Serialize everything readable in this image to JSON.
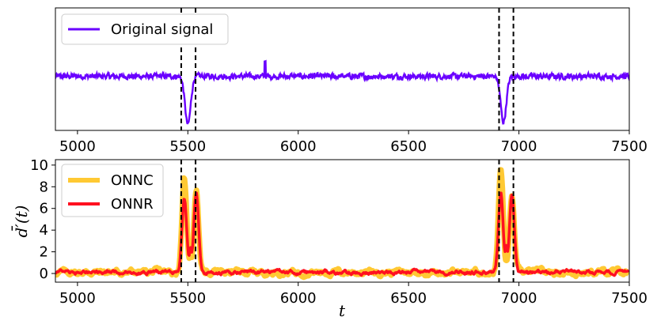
{
  "chart_data": [
    {
      "type": "line",
      "panel": "top",
      "xlim": [
        4900,
        7500
      ],
      "ylim": [
        -1.9,
        2.4
      ],
      "yticks_visible": false,
      "x_ticks": [
        5000,
        5500,
        6000,
        6500,
        7000,
        7500
      ],
      "x_tick_labels": [
        "5000",
        "5500",
        "6000",
        "6500",
        "7000",
        "7500"
      ],
      "xlabel": "",
      "ylabel": "",
      "legend_position": "top-left",
      "series": [
        {
          "name": "Original signal",
          "color": "#6a00ff",
          "baseline": 0.0,
          "noise_amplitude": 0.13,
          "dips": [
            {
              "center": 5500,
              "depth": -1.7
            },
            {
              "center": 6930,
              "depth": -1.6
            }
          ]
        }
      ],
      "vlines": [
        5470,
        5535,
        6910,
        6975
      ],
      "vline_style": "dashed",
      "vline_color": "#000000"
    },
    {
      "type": "line",
      "panel": "bottom",
      "xlim": [
        4900,
        7500
      ],
      "ylim": [
        -0.8,
        10.5
      ],
      "y_ticks": [
        0,
        2,
        4,
        6,
        8,
        10
      ],
      "y_tick_labels": [
        "0",
        "2",
        "4",
        "6",
        "8",
        "10"
      ],
      "x_ticks": [
        5000,
        5500,
        6000,
        6500,
        7000,
        7500
      ],
      "x_tick_labels": [
        "5000",
        "5500",
        "6000",
        "6500",
        "7000",
        "7500"
      ],
      "xlabel": "t",
      "ylabel": "d̄′(t)",
      "legend_position": "top-left",
      "series": [
        {
          "name": "ONNC",
          "color": "#ffc933",
          "peaks": [
            {
              "x": 5484,
              "y": 8.5
            },
            {
              "x": 5538,
              "y": 7.6
            },
            {
              "x": 6918,
              "y": 9.5
            },
            {
              "x": 6968,
              "y": 7.0
            }
          ],
          "troughs": [
            {
              "x": 5512,
              "y": 1.8
            },
            {
              "x": 6943,
              "y": 1.2
            }
          ]
        },
        {
          "name": "ONNR",
          "color": "#ff1020",
          "peaks": [
            {
              "x": 5484,
              "y": 6.7
            },
            {
              "x": 5538,
              "y": 7.3
            },
            {
              "x": 6918,
              "y": 7.4
            },
            {
              "x": 6968,
              "y": 7.2
            }
          ],
          "troughs": [
            {
              "x": 5512,
              "y": 2.4
            },
            {
              "x": 6943,
              "y": 2.6
            }
          ]
        }
      ],
      "vlines": [
        5470,
        5535,
        6910,
        6975
      ],
      "vline_style": "dashed",
      "vline_color": "#000000"
    }
  ]
}
